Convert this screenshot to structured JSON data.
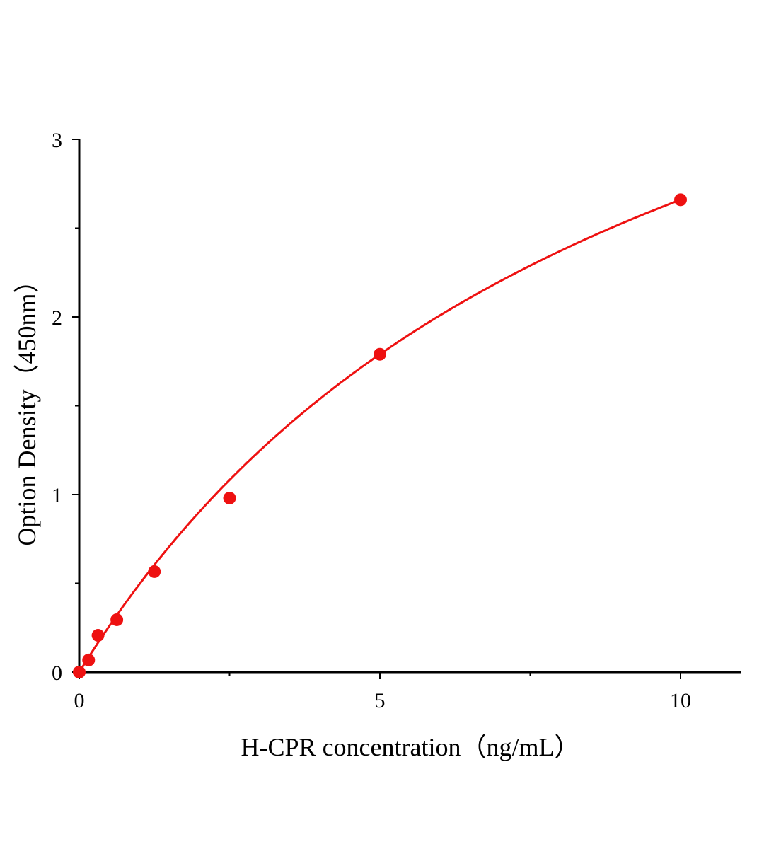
{
  "chart_data": {
    "type": "scatter",
    "title": "",
    "xlabel": "H-CPR concentration（ng/mL）",
    "ylabel": "Option Density（450nm）",
    "xlim": [
      0,
      11
    ],
    "ylim": [
      0,
      3
    ],
    "x_ticks": [
      "0",
      "5",
      "10"
    ],
    "y_ticks": [
      "0",
      "1",
      "2",
      "3"
    ],
    "grid": false,
    "legend": "none",
    "color": "#ee1111",
    "series": [
      {
        "x": [
          0,
          0.156,
          0.3125,
          0.625,
          1.25,
          2.5,
          5,
          10
        ],
        "y": [
          0,
          0.068,
          0.207,
          0.295,
          0.566,
          0.98,
          1.79,
          2.66
        ]
      }
    ],
    "fit_curve": true
  }
}
